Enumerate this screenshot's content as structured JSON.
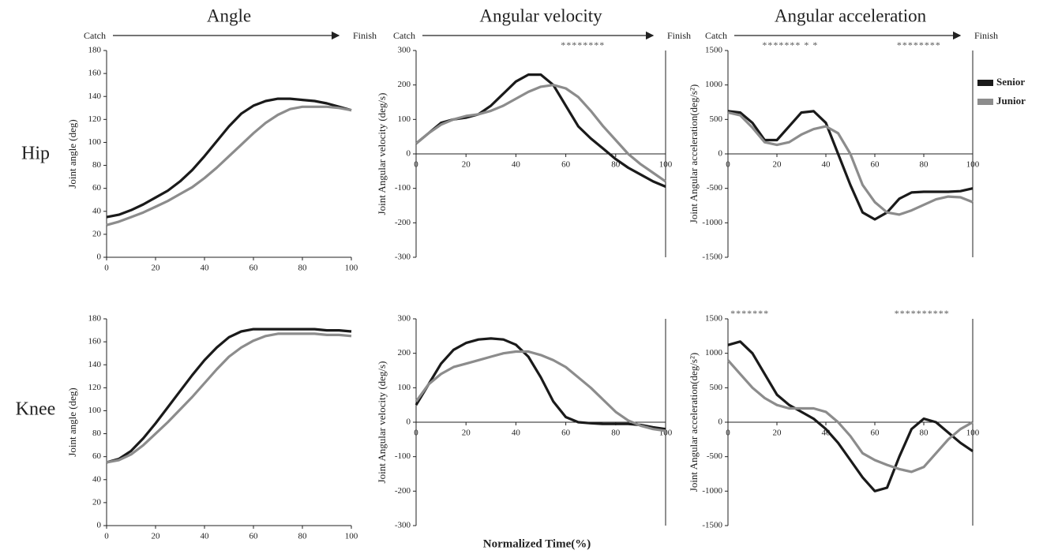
{
  "figure": {
    "column_titles": [
      "Angle",
      "Angular velocity",
      "Angular acceleration"
    ],
    "phase_start": "Catch",
    "phase_end": "Finish",
    "row_labels": [
      "Hip",
      "Knee"
    ],
    "x_label": "Normalized Time(%)"
  },
  "chart_data": [
    {
      "type": "line",
      "ylabel": "Joint angle (deg)",
      "x": [
        0,
        5,
        10,
        15,
        20,
        25,
        30,
        35,
        40,
        45,
        50,
        55,
        60,
        65,
        70,
        75,
        80,
        85,
        90,
        95,
        100
      ],
      "series": [
        {
          "color": "#1a1a1a",
          "values": [
            35,
            37,
            41,
            46,
            52,
            58,
            66,
            76,
            88,
            101,
            114,
            125,
            132,
            136,
            138,
            138,
            137,
            136,
            134,
            131,
            128
          ]
        },
        {
          "color": "#8c8c8c",
          "values": [
            28,
            31,
            35,
            39,
            44,
            49,
            55,
            61,
            69,
            78,
            88,
            98,
            108,
            117,
            124,
            129,
            131,
            131,
            131,
            130,
            128
          ]
        }
      ],
      "xlim": [
        0,
        100
      ],
      "xticks": [
        0,
        20,
        40,
        60,
        80,
        100
      ],
      "ylim": [
        0,
        180
      ],
      "yticks": [
        0,
        20,
        40,
        60,
        80,
        100,
        120,
        140,
        160,
        180
      ],
      "annotations": []
    },
    {
      "type": "line",
      "ylabel": "Joint Angular velocity (deg/s)",
      "x": [
        0,
        5,
        10,
        15,
        20,
        25,
        30,
        35,
        40,
        45,
        50,
        55,
        60,
        65,
        70,
        75,
        80,
        85,
        90,
        95,
        100
      ],
      "series": [
        {
          "color": "#1a1a1a",
          "values": [
            30,
            60,
            90,
            100,
            105,
            115,
            140,
            175,
            210,
            230,
            230,
            200,
            140,
            80,
            45,
            15,
            -15,
            -40,
            -60,
            -80,
            -95
          ]
        },
        {
          "color": "#8c8c8c",
          "values": [
            30,
            60,
            85,
            100,
            110,
            115,
            125,
            140,
            160,
            180,
            195,
            200,
            190,
            165,
            125,
            80,
            40,
            0,
            -30,
            -55,
            -80
          ]
        }
      ],
      "xlim": [
        0,
        100
      ],
      "xticks": [
        0,
        20,
        40,
        60,
        80,
        100
      ],
      "ylim": [
        -300,
        300
      ],
      "yticks": [
        -300,
        -200,
        -100,
        0,
        100,
        200,
        300
      ],
      "annotations": [
        {
          "text": "********",
          "x": 58
        }
      ]
    },
    {
      "type": "line",
      "ylabel": "Joint Angular acceleration(deg/s²)",
      "x": [
        0,
        5,
        10,
        15,
        20,
        25,
        30,
        35,
        40,
        45,
        50,
        55,
        60,
        65,
        70,
        75,
        80,
        85,
        90,
        95,
        100
      ],
      "series": [
        {
          "name": "Senior",
          "color": "#1a1a1a",
          "values": [
            620,
            600,
            450,
            200,
            200,
            400,
            600,
            620,
            450,
            0,
            -450,
            -850,
            -950,
            -850,
            -650,
            -560,
            -550,
            -550,
            -550,
            -540,
            -500
          ]
        },
        {
          "name": "Junior",
          "color": "#8c8c8c",
          "values": [
            600,
            560,
            380,
            170,
            130,
            170,
            280,
            360,
            400,
            300,
            0,
            -450,
            -700,
            -850,
            -880,
            -820,
            -740,
            -660,
            -620,
            -630,
            -700
          ]
        }
      ],
      "xlim": [
        0,
        100
      ],
      "xticks": [
        0,
        20,
        40,
        60,
        80,
        100
      ],
      "ylim": [
        -1500,
        1500
      ],
      "yticks": [
        -1500,
        -1000,
        -500,
        0,
        500,
        1000,
        1500
      ],
      "annotations": [
        {
          "text": "******* * *",
          "x": 14
        },
        {
          "text": "********",
          "x": 69
        }
      ]
    },
    {
      "type": "line",
      "ylabel": "Joint angle (deg)",
      "x": [
        0,
        5,
        10,
        15,
        20,
        25,
        30,
        35,
        40,
        45,
        50,
        55,
        60,
        65,
        70,
        75,
        80,
        85,
        90,
        95,
        100
      ],
      "series": [
        {
          "color": "#1a1a1a",
          "values": [
            55,
            58,
            65,
            76,
            89,
            103,
            117,
            131,
            144,
            155,
            164,
            169,
            171,
            171,
            171,
            171,
            171,
            171,
            170,
            170,
            169
          ]
        },
        {
          "color": "#8c8c8c",
          "values": [
            55,
            57,
            62,
            70,
            80,
            90,
            101,
            112,
            124,
            136,
            147,
            155,
            161,
            165,
            167,
            167,
            167,
            167,
            166,
            166,
            165
          ]
        }
      ],
      "xlim": [
        0,
        100
      ],
      "xticks": [
        0,
        20,
        40,
        60,
        80,
        100
      ],
      "ylim": [
        0,
        180
      ],
      "yticks": [
        0,
        20,
        40,
        60,
        80,
        100,
        120,
        140,
        160,
        180
      ],
      "annotations": []
    },
    {
      "type": "line",
      "ylabel": "Joint Angular velocity (deg/s)",
      "x": [
        0,
        5,
        10,
        15,
        20,
        25,
        30,
        35,
        40,
        45,
        50,
        55,
        60,
        65,
        70,
        75,
        80,
        85,
        90,
        95,
        100
      ],
      "series": [
        {
          "color": "#1a1a1a",
          "values": [
            50,
            110,
            170,
            210,
            230,
            240,
            243,
            240,
            225,
            190,
            130,
            60,
            15,
            0,
            -3,
            -5,
            -5,
            -5,
            -8,
            -15,
            -20
          ]
        },
        {
          "color": "#8c8c8c",
          "values": [
            60,
            110,
            140,
            160,
            170,
            180,
            190,
            200,
            205,
            205,
            195,
            180,
            160,
            130,
            100,
            65,
            30,
            5,
            -10,
            -20,
            -25
          ]
        }
      ],
      "xlim": [
        0,
        100
      ],
      "xticks": [
        0,
        20,
        40,
        60,
        80,
        100
      ],
      "ylim": [
        -300,
        300
      ],
      "yticks": [
        -300,
        -200,
        -100,
        0,
        100,
        200,
        300
      ],
      "annotations": []
    },
    {
      "type": "line",
      "ylabel": "Joint Angular acceleration(deg/s²)",
      "x": [
        0,
        5,
        10,
        15,
        20,
        25,
        30,
        35,
        40,
        45,
        50,
        55,
        60,
        65,
        70,
        75,
        80,
        85,
        90,
        95,
        100
      ],
      "series": [
        {
          "color": "#1a1a1a",
          "values": [
            1120,
            1170,
            1000,
            700,
            400,
            250,
            150,
            50,
            -100,
            -300,
            -550,
            -800,
            -1000,
            -950,
            -500,
            -100,
            50,
            0,
            -150,
            -300,
            -420
          ]
        },
        {
          "color": "#8c8c8c",
          "values": [
            900,
            700,
            500,
            350,
            250,
            200,
            200,
            200,
            150,
            0,
            -200,
            -450,
            -550,
            -620,
            -680,
            -720,
            -650,
            -450,
            -250,
            -100,
            0
          ]
        }
      ],
      "xlim": [
        0,
        100
      ],
      "xticks": [
        0,
        20,
        40,
        60,
        80,
        100
      ],
      "ylim": [
        -1500,
        1500
      ],
      "yticks": [
        -1500,
        -1000,
        -500,
        0,
        500,
        1000,
        1500
      ],
      "annotations": [
        {
          "text": "*******",
          "x": 1
        },
        {
          "text": "**********",
          "x": 68
        }
      ]
    }
  ]
}
